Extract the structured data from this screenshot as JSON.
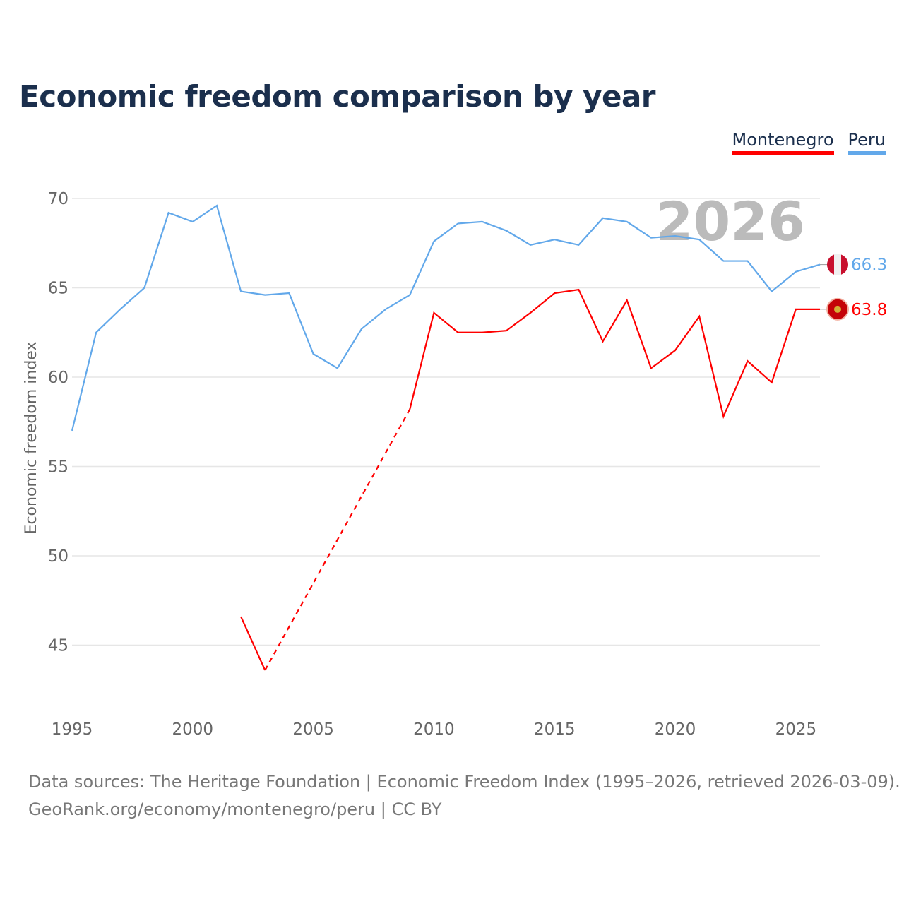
{
  "title": "Economic freedom comparison by year",
  "footer": {
    "line1": "Data sources: The Heritage Foundation | Economic Freedom Index (1995–2026, retrieved 2026-03-09).",
    "line2": "GeoRank.org/economy/montenegro/peru | CC BY"
  },
  "chart_data": {
    "type": "line",
    "title": "Economic freedom comparison by year",
    "xlabel": "",
    "ylabel": "Economic freedom index",
    "year_label": "2026",
    "xlim": [
      1995,
      2026
    ],
    "ylim": [
      42,
      71
    ],
    "x_ticks": [
      1995,
      2000,
      2005,
      2010,
      2015,
      2020,
      2025
    ],
    "y_ticks": [
      45,
      50,
      55,
      60,
      65,
      70
    ],
    "grid": true,
    "legend_position": "top-right",
    "x": [
      1995,
      1996,
      1997,
      1998,
      1999,
      2000,
      2001,
      2002,
      2003,
      2004,
      2005,
      2006,
      2007,
      2008,
      2009,
      2010,
      2011,
      2012,
      2013,
      2014,
      2015,
      2016,
      2017,
      2018,
      2019,
      2020,
      2021,
      2022,
      2023,
      2024,
      2025,
      2026
    ],
    "series": [
      {
        "name": "Montenegro",
        "color": "#ff0000",
        "end_label": "63.8",
        "values": [
          null,
          null,
          null,
          null,
          null,
          null,
          null,
          46.6,
          43.6,
          null,
          null,
          null,
          null,
          null,
          58.2,
          63.6,
          62.5,
          62.5,
          62.6,
          63.6,
          64.7,
          64.9,
          62.0,
          64.3,
          60.5,
          61.5,
          63.4,
          57.8,
          60.9,
          59.7,
          63.8,
          63.8
        ]
      },
      {
        "name": "Peru",
        "color": "#62a8ea",
        "end_label": "66.3",
        "values": [
          57.0,
          62.5,
          63.8,
          65.0,
          69.2,
          68.7,
          69.6,
          64.8,
          64.6,
          64.7,
          61.3,
          60.5,
          62.7,
          63.8,
          64.6,
          67.6,
          68.6,
          68.7,
          68.2,
          67.4,
          67.7,
          67.4,
          68.9,
          68.7,
          67.8,
          67.9,
          67.7,
          66.5,
          66.5,
          64.8,
          65.9,
          66.3
        ]
      }
    ]
  }
}
